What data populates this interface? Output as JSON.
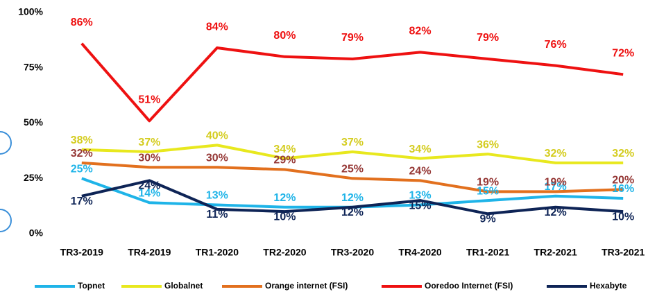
{
  "chart_data": {
    "type": "line",
    "categories": [
      "TR3-2019",
      "TR4-2019",
      "TR1-2020",
      "TR2-2020",
      "TR3-2020",
      "TR4-2020",
      "TR1-2021",
      "TR2-2021",
      "TR3-2021"
    ],
    "ylim": [
      0,
      100
    ],
    "yticks": [
      {
        "value": 0,
        "label": "0%"
      },
      {
        "value": 25,
        "label": "25%"
      },
      {
        "value": 50,
        "label": "50%"
      },
      {
        "value": 75,
        "label": "75%"
      },
      {
        "value": 100,
        "label": "100%"
      }
    ],
    "grid": false,
    "legend": "bottom",
    "series": [
      {
        "name": "Topnet",
        "color": "#1fb4e8",
        "label_color": "#1fb4e8",
        "values": [
          25,
          14,
          13,
          12,
          12,
          13,
          15,
          17,
          16
        ],
        "value_labels": [
          "25%",
          "14%",
          "13%",
          "12%",
          "12%",
          "13%",
          "15%",
          "17%",
          "16%"
        ]
      },
      {
        "name": "Globalnet",
        "color": "#e8e81e",
        "label_color": "#d4cc1e",
        "values": [
          38,
          37,
          40,
          34,
          37,
          34,
          36,
          32,
          32
        ],
        "value_labels": [
          "38%",
          "37%",
          "40%",
          "34%",
          "37%",
          "34%",
          "36%",
          "32%",
          "32%"
        ]
      },
      {
        "name": "Orange internet (FSI)",
        "color": "#e2701e",
        "label_color": "#953735",
        "values": [
          32,
          30,
          30,
          29,
          25,
          24,
          19,
          19,
          20
        ],
        "value_labels": [
          "32%",
          "30%",
          "30%",
          "29%",
          "25%",
          "24%",
          "19%",
          "19%",
          "20%"
        ]
      },
      {
        "name": "Ooredoo Internet (FSI)",
        "color": "#ee1111",
        "label_color": "#ee1111",
        "values": [
          86,
          51,
          84,
          80,
          79,
          82,
          79,
          76,
          72
        ],
        "value_labels": [
          "86%",
          "51%",
          "84%",
          "80%",
          "79%",
          "82%",
          "79%",
          "76%",
          "72%"
        ]
      },
      {
        "name": "Hexabyte",
        "color": "#0e2456",
        "label_color": "#0e2456",
        "values": [
          17,
          24,
          11,
          10,
          12,
          15,
          9,
          12,
          10
        ],
        "value_labels": [
          "17%",
          "24%",
          "11%",
          "10%",
          "12%",
          "15%",
          "9%",
          "12%",
          "10%"
        ]
      }
    ]
  }
}
